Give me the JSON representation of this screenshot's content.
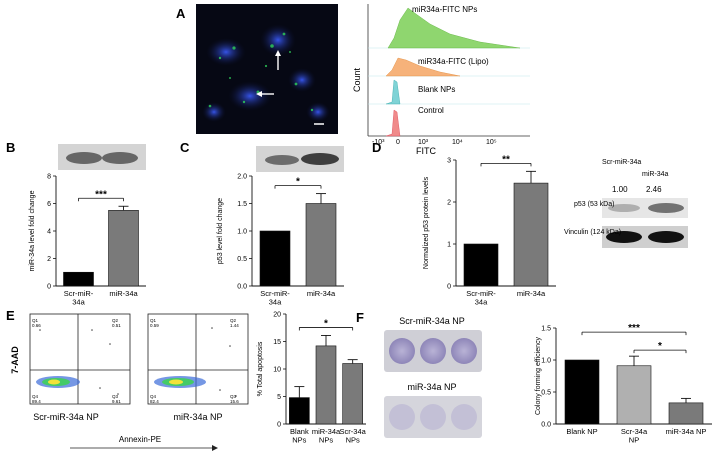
{
  "figure": {
    "panel_labels": [
      "A",
      "B",
      "C",
      "D",
      "E",
      "F"
    ]
  },
  "panelA": {
    "flow_xlabel": "FITC",
    "flow_ylabel": "Count",
    "flow_ticks": [
      "-10³",
      "0",
      "10³",
      "10⁴",
      "10⁵"
    ],
    "histograms": [
      {
        "label": "miR34a-FITC NPs",
        "color": "#8fd66f"
      },
      {
        "label": "miR34a-FITC (Lipo)",
        "color": "#f6b27a"
      },
      {
        "label": "Blank NPs",
        "color": "#7fd3d6"
      },
      {
        "label": "Control",
        "color": "#f08a8a"
      }
    ]
  },
  "chart_data": [
    {
      "id": "B",
      "type": "bar",
      "categories": [
        "Scr-miR-34a",
        "miR-34a"
      ],
      "values": [
        1.0,
        5.5
      ],
      "errors": [
        0,
        0.3
      ],
      "ylabel": "miR-34a level fold change",
      "ylim": [
        0,
        8
      ],
      "yticks": [
        0,
        2,
        4,
        6,
        8
      ],
      "bar_colors": [
        "#000000",
        "#7a7a7a"
      ],
      "significance": "***"
    },
    {
      "id": "C",
      "type": "bar",
      "categories": [
        "Scr-miR-34a",
        "miR-34a"
      ],
      "values": [
        1.0,
        1.5
      ],
      "errors": [
        0,
        0.18
      ],
      "ylabel": "p53 level fold change",
      "ylim": [
        0,
        2.0
      ],
      "yticks": [
        0.0,
        0.5,
        1.0,
        1.5,
        2.0
      ],
      "bar_colors": [
        "#000000",
        "#7a7a7a"
      ],
      "significance": "*"
    },
    {
      "id": "D",
      "type": "bar",
      "categories": [
        "Scr-miR-34a",
        "miR-34a"
      ],
      "values": [
        1.0,
        2.45
      ],
      "errors": [
        0,
        0.28
      ],
      "ylabel": "Normalized p53 protein levels",
      "ylim": [
        0,
        3
      ],
      "yticks": [
        0,
        1,
        2,
        3
      ],
      "bar_colors": [
        "#000000",
        "#7a7a7a"
      ],
      "significance": "**"
    },
    {
      "id": "E",
      "type": "bar",
      "categories": [
        "Blank NPs",
        "miR-34a NPs",
        "Scr-34a NPs"
      ],
      "values": [
        4.8,
        14.2,
        11.0
      ],
      "errors": [
        2.0,
        1.9,
        0.7
      ],
      "ylabel": "% Total apoptosis",
      "ylim": [
        0,
        20
      ],
      "yticks": [
        0,
        5,
        10,
        15,
        20
      ],
      "bar_colors": [
        "#000000",
        "#7a7a7a",
        "#7a7a7a"
      ],
      "significance": "*"
    },
    {
      "id": "F",
      "type": "bar",
      "categories": [
        "Blank NP",
        "Scr-34a NP",
        "miR-34a NP"
      ],
      "values": [
        1.0,
        0.91,
        0.33
      ],
      "errors": [
        0,
        0.15,
        0.07
      ],
      "ylabel": "Colony forming efficiency",
      "ylim": [
        0,
        1.5
      ],
      "yticks": [
        0.0,
        0.5,
        1.0,
        1.5
      ],
      "bar_colors": [
        "#000000",
        "#b0b0b0",
        "#7a7a7a"
      ],
      "significance": [
        "***",
        "*"
      ]
    }
  ],
  "panelD_blot": {
    "lane_labels": [
      "Scr-miR-34a",
      "miR-34a"
    ],
    "quant": [
      "1.00",
      "2.46"
    ],
    "bands": [
      "p53 (53 kDa)",
      "Vinculin (124 kDa)"
    ]
  },
  "panelE_flow": {
    "ylabel": "7-AAD",
    "xlabel": "Annexin-PE",
    "plots": [
      {
        "name": "Scr-miR-34a NP",
        "q": [
          "Q1\n0.66",
          "Q2\n0.51",
          "Q4\n89.4",
          "Q3\n9.61"
        ]
      },
      {
        "name": "miR-34a NP",
        "q": [
          "Q1\n0.59",
          "Q2\n1.44",
          "Q4\n82.4",
          "Q3\n15.6"
        ]
      }
    ]
  },
  "panelF_plates": {
    "labels": [
      "Scr-miR-34a NP",
      "miR-34a NP"
    ]
  }
}
